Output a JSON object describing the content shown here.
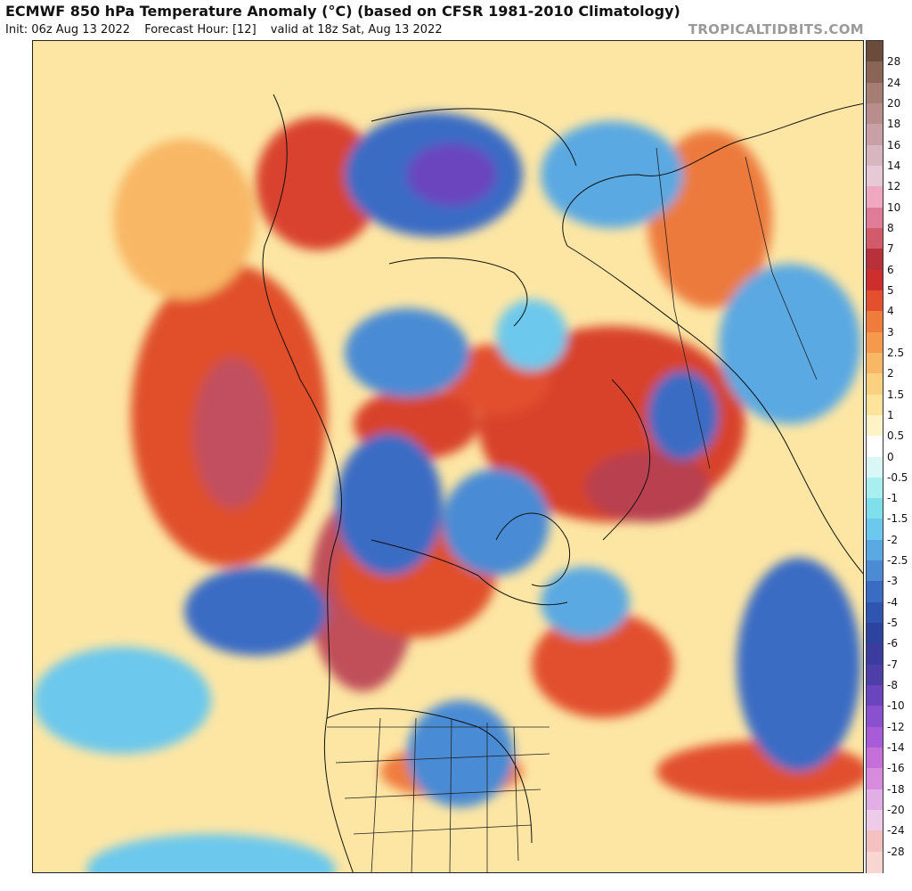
{
  "header": {
    "title": "ECMWF 850 hPa Temperature Anomaly (°C) (based on CFSR 1981-2010 Climatology)",
    "init": "Init: 06z Aug 13 2022",
    "forecast_hour": "Forecast Hour: [12]",
    "valid": "valid at 18z Sat, Aug 13 2022",
    "credit": "TROPICALTIDBITS.COM"
  },
  "map": {
    "projection": "polar stereographic, North Pole centered",
    "variable": "850 hPa temperature anomaly"
  },
  "colorbar": {
    "labels": [
      "28",
      "24",
      "20",
      "18",
      "16",
      "14",
      "12",
      "10",
      "8",
      "7",
      "6",
      "5",
      "4",
      "3",
      "2.5",
      "2",
      "1.5",
      "1",
      "0.5",
      "0",
      "-0.5",
      "-1",
      "-1.5",
      "-2",
      "-2.5",
      "-3",
      "-4",
      "-5",
      "-6",
      "-7",
      "-8",
      "-10",
      "-12",
      "-14",
      "-16",
      "-18",
      "-20",
      "-24",
      "-28"
    ],
    "colors": [
      "#6b4c3b",
      "#8a6455",
      "#a67d72",
      "#b98d8c",
      "#c9a0a6",
      "#d8b6c0",
      "#e7c9d6",
      "#f0a8c0",
      "#e07c98",
      "#d25a6a",
      "#b8303a",
      "#cf2e2e",
      "#e2502d",
      "#ef7b3c",
      "#f59a4c",
      "#f8b765",
      "#fbd07e",
      "#fde49a",
      "#fff2c6",
      "#ffffff",
      "#d9f7f7",
      "#a9eef0",
      "#7fdfea",
      "#6cc8ec",
      "#5aa9e2",
      "#4a8bd4",
      "#3b6cc4",
      "#2f55b0",
      "#2c44a0",
      "#3a3d9e",
      "#4d3ea8",
      "#6a45be",
      "#8a50d0",
      "#a85cd8",
      "#c570d8",
      "#d68bdc",
      "#e2aee6",
      "#eecce9",
      "#f5c0c0",
      "#f9d6d2"
    ]
  }
}
